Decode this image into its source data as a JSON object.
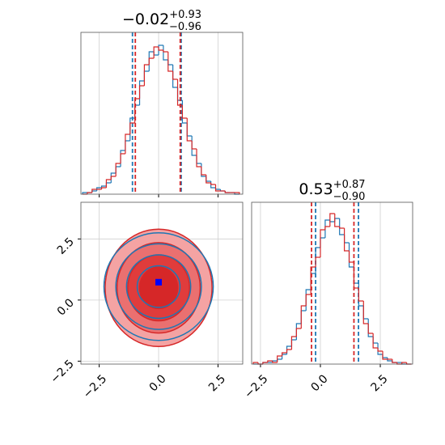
{
  "chart_data": [
    {
      "type": "histogram",
      "title": "−0.02",
      "title_upper": "+0.93",
      "title_lower": "−0.96",
      "bins": [
        -3.2,
        -3.0,
        -2.8,
        -2.6,
        -2.4,
        -2.2,
        -2.0,
        -1.8,
        -1.6,
        -1.4,
        -1.2,
        -1.0,
        -0.8,
        -0.6,
        -0.4,
        -0.2,
        0.0,
        0.2,
        0.4,
        0.6,
        0.8,
        1.0,
        1.2,
        1.4,
        1.6,
        1.8,
        2.0,
        2.2,
        2.4,
        2.6,
        2.8,
        3.0,
        3.2,
        3.4
      ],
      "series": [
        {
          "color": "#1f77b4",
          "values": [
            1,
            1,
            2,
            4,
            5,
            7,
            13,
            17,
            27,
            33,
            47,
            55,
            70,
            76,
            88,
            86,
            92,
            83,
            80,
            66,
            58,
            44,
            36,
            24,
            19,
            11,
            8,
            4,
            3,
            2,
            1,
            1,
            0
          ],
          "quantiles": [
            -1.1,
            0.95
          ]
        },
        {
          "color": "#d62728",
          "values": [
            0,
            1,
            3,
            3,
            4,
            9,
            11,
            19,
            25,
            37,
            44,
            59,
            67,
            80,
            84,
            91,
            89,
            88,
            76,
            71,
            55,
            47,
            33,
            28,
            17,
            12,
            7,
            6,
            2,
            2,
            1,
            1,
            1
          ],
          "quantiles": [
            -0.98,
            0.91
          ]
        }
      ],
      "xlim": [
        -3.27,
        3.54
      ],
      "ylim": [
        0,
        100
      ],
      "xticks": [
        -2.5,
        0,
        2.5
      ],
      "grid": true
    },
    {
      "type": "contour",
      "series": [
        {
          "color": "#d62728",
          "filled": true,
          "fills": [
            "#f4a3a3",
            "#ea7070",
            "#e03c3c",
            "#d62728"
          ],
          "center": [
            0,
            0.5
          ],
          "rx": [
            2.25,
            1.75,
            1.3,
            0.8
          ],
          "ry": [
            2.4,
            1.85,
            1.35,
            0.85
          ]
        },
        {
          "color": "#1f77b4",
          "filled": false,
          "center": [
            0,
            0.55
          ],
          "rx": [
            2.3,
            1.8,
            1.35,
            0.9
          ],
          "ry": [
            2.2,
            1.75,
            1.3,
            0.85
          ]
        }
      ],
      "markers": [
        {
          "x": 0,
          "y": 0.73,
          "color": "#0000ff"
        }
      ],
      "xlim": [
        -3.27,
        3.54
      ],
      "ylim": [
        -2.62,
        4.0
      ],
      "xticks": [
        {
          "value": -2.5,
          "label": "−2.5"
        },
        {
          "value": 0,
          "label": "0.0"
        },
        {
          "value": 2.5,
          "label": "2.5"
        }
      ],
      "yticks": [
        {
          "value": -2.5,
          "label": "−2.5"
        },
        {
          "value": 0,
          "label": "0.0"
        },
        {
          "value": 2.5,
          "label": "2.5"
        }
      ],
      "grid": true
    },
    {
      "type": "histogram",
      "title": "0.53",
      "title_upper": "+0.87",
      "title_lower": "−0.90",
      "bins": [
        -2.8,
        -2.6,
        -2.4,
        -2.2,
        -2.0,
        -1.8,
        -1.6,
        -1.4,
        -1.2,
        -1.0,
        -0.8,
        -0.6,
        -0.4,
        -0.2,
        0.0,
        0.2,
        0.4,
        0.6,
        0.8,
        1.0,
        1.2,
        1.4,
        1.6,
        1.8,
        2.0,
        2.2,
        2.4,
        2.6,
        2.8,
        3.0,
        3.2,
        3.4,
        3.6,
        3.8
      ],
      "series": [
        {
          "color": "#1f77b4",
          "values": [
            0,
            0,
            1,
            1,
            2,
            3,
            6,
            11,
            15,
            25,
            33,
            46,
            56,
            72,
            78,
            89,
            88,
            90,
            80,
            75,
            60,
            50,
            36,
            28,
            17,
            13,
            6,
            4,
            2,
            1,
            1,
            0,
            0
          ],
          "quantiles": [
            -0.2,
            1.59
          ]
        },
        {
          "color": "#d62728",
          "values": [
            1,
            0,
            1,
            2,
            1,
            5,
            7,
            9,
            17,
            22,
            36,
            43,
            60,
            66,
            83,
            85,
            93,
            85,
            84,
            70,
            63,
            47,
            39,
            25,
            19,
            10,
            8,
            3,
            3,
            1,
            0,
            1,
            0
          ],
          "quantiles": [
            -0.37,
            1.4
          ]
        }
      ],
      "xlim": [
        -2.87,
        3.85
      ],
      "ylim": [
        0,
        100
      ],
      "xticks": [
        {
          "value": -2.5,
          "label": "−2.5"
        },
        {
          "value": 0,
          "label": "0.0"
        },
        {
          "value": 2.5,
          "label": "2.5"
        }
      ],
      "grid": true
    }
  ]
}
